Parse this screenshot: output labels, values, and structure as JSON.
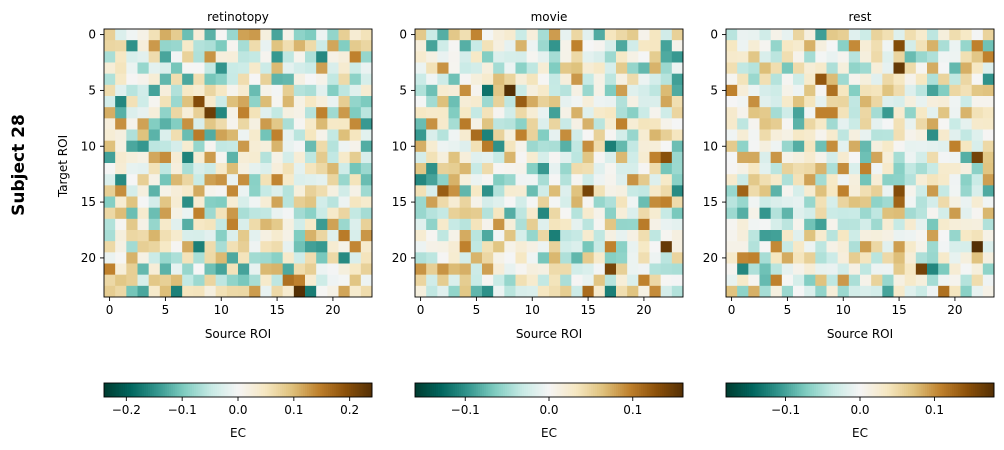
{
  "figure": {
    "row_label": "Subject 28"
  },
  "chart_data": [
    {
      "type": "heatmap",
      "title": "retinotopy",
      "xlabel": "Source ROI",
      "ylabel": "Target ROI",
      "n_rois": 24,
      "x_ticks": [
        0,
        5,
        10,
        15,
        20
      ],
      "y_ticks": [
        0,
        5,
        10,
        15,
        20
      ],
      "colormap": "BrBG_r",
      "colorbar": {
        "label": "EC",
        "vmin": -0.24,
        "vmax": 0.24,
        "ticks": [
          -0.2,
          -0.1,
          0.0,
          0.1,
          0.2
        ],
        "tick_labels": [
          "−0.2",
          "−0.1",
          "0.0",
          "0.1",
          "0.2"
        ]
      },
      "highlight_cells": [
        {
          "row": 6,
          "col": 8,
          "value": 0.2
        },
        {
          "row": 7,
          "col": 9,
          "value": 0.22
        },
        {
          "row": 23,
          "col": 17,
          "value": 0.24
        },
        {
          "row": 22,
          "col": 16,
          "value": 0.16
        },
        {
          "row": 18,
          "col": 21,
          "value": 0.15
        },
        {
          "row": 19,
          "col": 22,
          "value": 0.14
        },
        {
          "row": 17,
          "col": 20,
          "value": 0.12
        },
        {
          "row": 9,
          "col": 8,
          "value": 0.15
        },
        {
          "row": 2,
          "col": 9,
          "value": 0.13
        },
        {
          "row": 0,
          "col": 12,
          "value": 0.12
        },
        {
          "row": 8,
          "col": 3,
          "value": 0.12
        },
        {
          "row": 4,
          "col": 7,
          "value": -0.13
        },
        {
          "row": 10,
          "col": 2,
          "value": -0.13
        },
        {
          "row": 23,
          "col": 18,
          "value": -0.17
        },
        {
          "row": 17,
          "col": 19,
          "value": -0.14
        },
        {
          "row": 21,
          "col": 5,
          "value": -0.12
        }
      ],
      "matrix_seed": 28,
      "value_scale": 0.07
    },
    {
      "type": "heatmap",
      "title": "movie",
      "xlabel": "Source ROI",
      "ylabel": "",
      "n_rois": 24,
      "x_ticks": [
        0,
        5,
        10,
        15,
        20
      ],
      "y_ticks": [
        0,
        5,
        10,
        15,
        20
      ],
      "colormap": "BrBG_r",
      "colorbar": {
        "label": "EC",
        "vmin": -0.16,
        "vmax": 0.16,
        "ticks": [
          -0.1,
          0.0,
          0.1
        ],
        "tick_labels": [
          "−0.1",
          "0.0",
          "0.1"
        ]
      },
      "highlight_cells": [
        {
          "row": 5,
          "col": 8,
          "value": 0.16
        },
        {
          "row": 6,
          "col": 9,
          "value": 0.12
        },
        {
          "row": 8,
          "col": 4,
          "value": 0.1
        },
        {
          "row": 9,
          "col": 5,
          "value": 0.11
        },
        {
          "row": 10,
          "col": 6,
          "value": 0.1
        },
        {
          "row": 14,
          "col": 2,
          "value": 0.12
        },
        {
          "row": 14,
          "col": 15,
          "value": 0.14
        },
        {
          "row": 11,
          "col": 22,
          "value": 0.13
        },
        {
          "row": 19,
          "col": 22,
          "value": 0.15
        },
        {
          "row": 21,
          "col": 17,
          "value": 0.14
        },
        {
          "row": 23,
          "col": 15,
          "value": 0.11
        },
        {
          "row": 17,
          "col": 20,
          "value": 0.1
        },
        {
          "row": 5,
          "col": 6,
          "value": -0.12
        },
        {
          "row": 9,
          "col": 6,
          "value": -0.11
        },
        {
          "row": 10,
          "col": 7,
          "value": -0.1
        },
        {
          "row": 14,
          "col": 6,
          "value": -0.1
        },
        {
          "row": 23,
          "col": 6,
          "value": -0.1
        }
      ],
      "matrix_seed": 41,
      "value_scale": 0.045
    },
    {
      "type": "heatmap",
      "title": "rest",
      "xlabel": "Source ROI",
      "ylabel": "",
      "n_rois": 24,
      "x_ticks": [
        0,
        5,
        10,
        15,
        20
      ],
      "y_ticks": [
        0,
        5,
        10,
        15,
        20
      ],
      "colormap": "BrBG_r",
      "colorbar": {
        "label": "EC",
        "vmin": -0.18,
        "vmax": 0.18,
        "ticks": [
          -0.1,
          0.0,
          0.1
        ],
        "tick_labels": [
          "−0.1",
          "0.0",
          "0.1"
        ]
      },
      "highlight_cells": [
        {
          "row": 1,
          "col": 15,
          "value": 0.15
        },
        {
          "row": 3,
          "col": 15,
          "value": 0.17
        },
        {
          "row": 4,
          "col": 8,
          "value": 0.14
        },
        {
          "row": 5,
          "col": 9,
          "value": 0.12
        },
        {
          "row": 6,
          "col": 2,
          "value": 0.1
        },
        {
          "row": 11,
          "col": 22,
          "value": 0.16
        },
        {
          "row": 14,
          "col": 1,
          "value": 0.13
        },
        {
          "row": 14,
          "col": 15,
          "value": 0.15
        },
        {
          "row": 15,
          "col": 15,
          "value": 0.13
        },
        {
          "row": 19,
          "col": 22,
          "value": 0.18
        },
        {
          "row": 21,
          "col": 17,
          "value": 0.16
        },
        {
          "row": 23,
          "col": 19,
          "value": 0.12
        },
        {
          "row": 7,
          "col": 6,
          "value": -0.1
        },
        {
          "row": 8,
          "col": 6,
          "value": -0.09
        },
        {
          "row": 21,
          "col": 1,
          "value": -0.12
        },
        {
          "row": 21,
          "col": 18,
          "value": -0.12
        },
        {
          "row": 21,
          "col": 3,
          "value": -0.08
        }
      ],
      "matrix_seed": 77,
      "value_scale": 0.05
    }
  ]
}
